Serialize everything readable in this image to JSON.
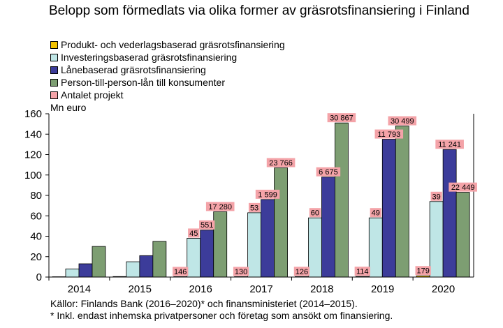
{
  "title": "Belopp som förmedlats via olika former av gräsrotsfinansiering i Finland",
  "unit_label": "Mn euro",
  "footnotes": [
    "Källor: Finlands Bank (2016–2020)* och finansministeriet (2014–2015).",
    "* Inkl. endast inhemska privatpersoner och företag som ansökt om finansiering."
  ],
  "colors": {
    "product": "#f2c200",
    "investment": "#bfe6e6",
    "loan": "#3c3c9a",
    "p2p": "#7d9e72",
    "projects": "#f4a3a8"
  },
  "chart_data": {
    "type": "bar",
    "title": "Belopp som förmedlats via olika former av gräsrotsfinansiering i Finland",
    "ylabel": "Mn euro",
    "ylim": [
      0,
      160
    ],
    "yticks": [
      0,
      20,
      40,
      60,
      80,
      100,
      120,
      140,
      160
    ],
    "grid": false,
    "legend_position": "top-left",
    "categories": [
      "2014",
      "2015",
      "2016",
      "2017",
      "2018",
      "2019",
      "2020"
    ],
    "series": [
      {
        "name": "Produkt- och vederlagsbaserad gräsrotsfinansiering",
        "color": "#f2c200",
        "values": [
          0.3,
          0.5,
          0.4,
          0.4,
          0.5,
          0.6,
          1.2
        ]
      },
      {
        "name": "Investeringsbaserad gräsrotsfinansiering",
        "color": "#bfe6e6",
        "values": [
          8,
          15,
          38,
          63,
          58,
          58,
          74
        ]
      },
      {
        "name": "Lånebaserad gräsrotsfinansiering",
        "color": "#3c3c9a",
        "values": [
          13,
          21,
          46,
          76,
          98,
          135,
          125
        ]
      },
      {
        "name": "Person-till-person-lån till konsumenter",
        "color": "#7d9e72",
        "values": [
          30,
          35,
          64,
          107,
          151,
          148,
          83
        ]
      }
    ],
    "project_counts_legend": "Antalet projekt",
    "project_counts": [
      {
        "category": "2016",
        "series": "Produkt- och vederlagsbaserad gräsrotsfinansiering",
        "label": "146"
      },
      {
        "category": "2016",
        "series": "Investeringsbaserad gräsrotsfinansiering",
        "label": "45"
      },
      {
        "category": "2016",
        "series": "Lånebaserad gräsrotsfinansiering",
        "label": "551"
      },
      {
        "category": "2016",
        "series": "Person-till-person-lån till konsumenter",
        "label": "17 280"
      },
      {
        "category": "2017",
        "series": "Produkt- och vederlagsbaserad gräsrotsfinansiering",
        "label": "130"
      },
      {
        "category": "2017",
        "series": "Investeringsbaserad gräsrotsfinansiering",
        "label": "53"
      },
      {
        "category": "2017",
        "series": "Lånebaserad gräsrotsfinansiering",
        "label": "1 599"
      },
      {
        "category": "2017",
        "series": "Person-till-person-lån till konsumenter",
        "label": "23 766"
      },
      {
        "category": "2018",
        "series": "Produkt- och vederlagsbaserad gräsrotsfinansiering",
        "label": "126"
      },
      {
        "category": "2018",
        "series": "Investeringsbaserad gräsrotsfinansiering",
        "label": "60"
      },
      {
        "category": "2018",
        "series": "Lånebaserad gräsrotsfinansiering",
        "label": "6 675"
      },
      {
        "category": "2018",
        "series": "Person-till-person-lån till konsumenter",
        "label": "30 867"
      },
      {
        "category": "2019",
        "series": "Produkt- och vederlagsbaserad gräsrotsfinansiering",
        "label": "114"
      },
      {
        "category": "2019",
        "series": "Investeringsbaserad gräsrotsfinansiering",
        "label": "49"
      },
      {
        "category": "2019",
        "series": "Lånebaserad gräsrotsfinansiering",
        "label": "11 793"
      },
      {
        "category": "2019",
        "series": "Person-till-person-lån till konsumenter",
        "label": "30 499"
      },
      {
        "category": "2020",
        "series": "Produkt- och vederlagsbaserad gräsrotsfinansiering",
        "label": "179"
      },
      {
        "category": "2020",
        "series": "Investeringsbaserad gräsrotsfinansiering",
        "label": "39"
      },
      {
        "category": "2020",
        "series": "Lånebaserad gräsrotsfinansiering",
        "label": "11 241"
      },
      {
        "category": "2020",
        "series": "Person-till-person-lån till konsumenter",
        "label": "22 449"
      }
    ]
  }
}
